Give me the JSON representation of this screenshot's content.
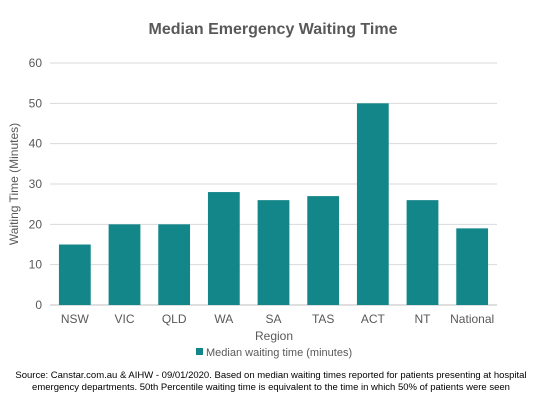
{
  "chart_data": {
    "type": "bar",
    "title": "Median Emergency Waiting Time",
    "xlabel": "Region",
    "ylabel": "Waiting Time (Minutes)",
    "ylim": [
      0,
      60
    ],
    "yticks": [
      0,
      10,
      20,
      30,
      40,
      50,
      60
    ],
    "categories": [
      "NSW",
      "VIC",
      "QLD",
      "WA",
      "SA",
      "TAS",
      "ACT",
      "NT",
      "National"
    ],
    "series": [
      {
        "name": "Median waiting time (minutes)",
        "values": [
          15,
          20,
          20,
          28,
          26,
          27,
          50,
          26,
          19
        ]
      }
    ],
    "grid": true,
    "legend_position": "bottom",
    "bar_color": "#13868A",
    "grid_color": "#D9D9D9",
    "axis_color": "#BFBFBF"
  },
  "source_text": "Source: Canstar.com.au & AIHW - 09/01/2020. Based on median waiting times reported for patients presenting at hospital emergency departments. 50th Percentile waiting time is equivalent to the time in which 50% of patients were seen"
}
